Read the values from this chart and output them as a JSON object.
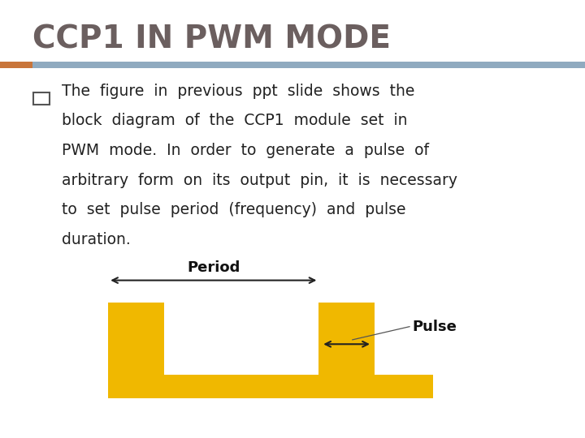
{
  "title": "CCP1 IN PWM MODE",
  "title_color": "#6b5f5f",
  "title_fontsize": 28,
  "title_fontweight": "bold",
  "accent_bar_color_left": "#c8753a",
  "accent_bar_color_right": "#8faabf",
  "bg_color": "#ffffff",
  "bullet_text_lines": [
    "The  figure  in  previous  ppt  slide  shows  the",
    "block  diagram  of  the  CCP1  module  set  in",
    "PWM  mode.  In  order  to  generate  a  pulse  of",
    "arbitrary  form  on  its  output  pin,  it  is  necessary",
    "to  set  pulse  period  (frequency)  and  pulse",
    "duration."
  ],
  "bullet_fontsize": 13.5,
  "bullet_color": "#222222",
  "pwm_gold": "#f0b800",
  "period_label": "Period",
  "pulse_label": "Pulse",
  "diagram_label_fontsize": 13,
  "diagram_label_fontweight": "bold"
}
